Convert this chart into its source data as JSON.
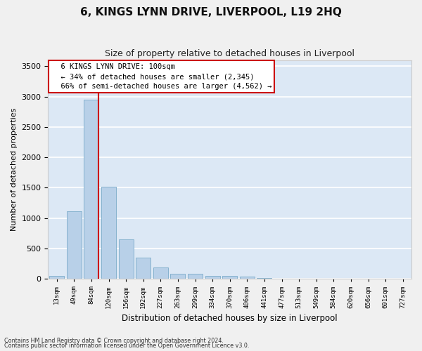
{
  "title": "6, KINGS LYNN DRIVE, LIVERPOOL, L19 2HQ",
  "subtitle": "Size of property relative to detached houses in Liverpool",
  "xlabel": "Distribution of detached houses by size in Liverpool",
  "ylabel": "Number of detached properties",
  "categories": [
    "13sqm",
    "49sqm",
    "84sqm",
    "120sqm",
    "156sqm",
    "192sqm",
    "227sqm",
    "263sqm",
    "299sqm",
    "334sqm",
    "370sqm",
    "406sqm",
    "441sqm",
    "477sqm",
    "513sqm",
    "549sqm",
    "584sqm",
    "620sqm",
    "656sqm",
    "691sqm",
    "727sqm"
  ],
  "values": [
    50,
    1110,
    2950,
    1520,
    650,
    350,
    190,
    90,
    80,
    55,
    55,
    35,
    20,
    10,
    5,
    5,
    3,
    2,
    1,
    1,
    0
  ],
  "bar_color": "#b8d0e8",
  "bar_edge_color": "#7aaac8",
  "vline_color": "#cc0000",
  "annotation_text": "  6 KINGS LYNN DRIVE: 100sqm\n  ← 34% of detached houses are smaller (2,345)\n  66% of semi-detached houses are larger (4,562) →",
  "annotation_box_color": "#ffffff",
  "annotation_box_edge": "#cc0000",
  "ylim": [
    0,
    3600
  ],
  "yticks": [
    0,
    500,
    1000,
    1500,
    2000,
    2500,
    3000,
    3500
  ],
  "background_color": "#dce8f5",
  "fig_background": "#f0f0f0",
  "grid_color": "#ffffff",
  "footer_line1": "Contains HM Land Registry data © Crown copyright and database right 2024.",
  "footer_line2": "Contains public sector information licensed under the Open Government Licence v3.0."
}
